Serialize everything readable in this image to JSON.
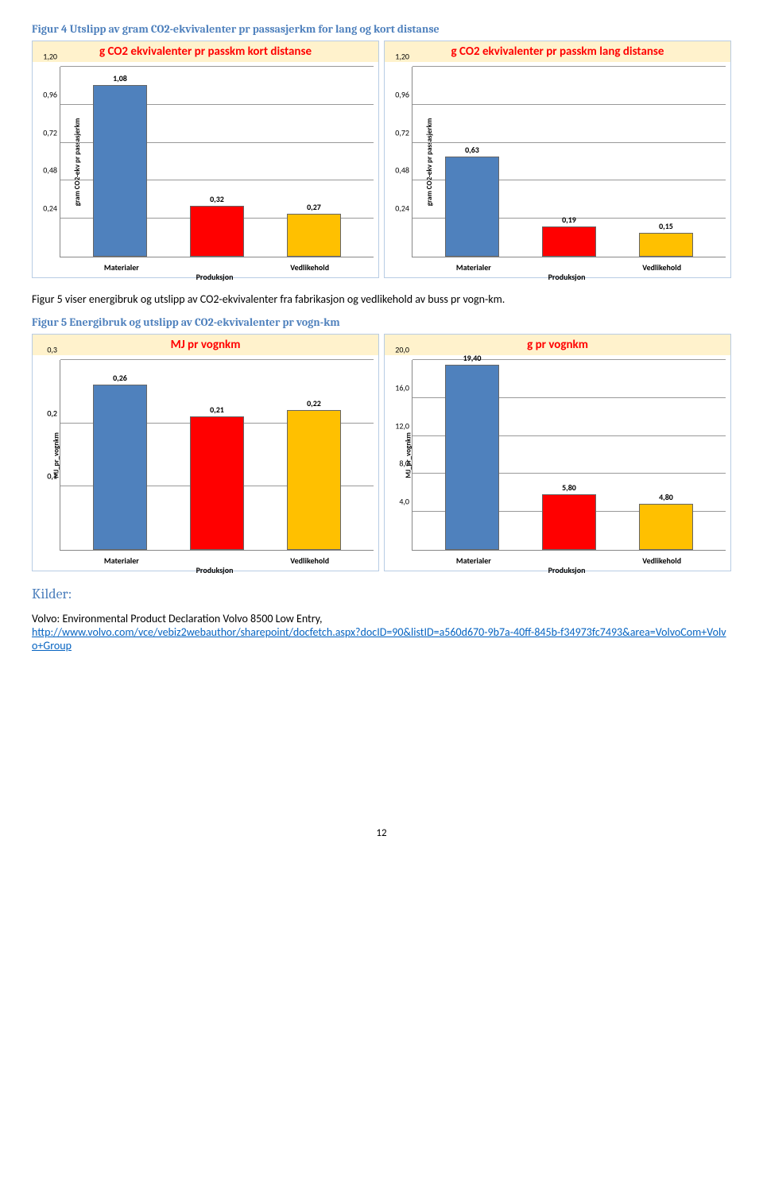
{
  "fig4_heading": "Figur 4 Utslipp av gram CO2-ekvivalenter pr passasjerkm for lang og kort distanse",
  "fig5_intro": "Figur 5 viser energibruk og utslipp av CO2-ekvivalenter fra fabrikasjon og vedlikehold av buss pr vogn-km.",
  "fig5_heading": "Figur 5 Energibruk og utslipp av CO2-ekvivalenter pr vogn-km",
  "kilder_title": "Kilder:",
  "source_text": "Volvo: Environmental Product Declaration Volvo 8500 Low Entry",
  "source_url": "http://www.volvo.com/vce/vebiz2webauthor/sharepoint/docfetch.aspx?docID=90&listID=a560d670-9b7a-40ff-845b-f34973fc7493&area=VolvoCom+Volvo+Group",
  "page_number": "12",
  "colors": {
    "bar_blue": "#4f81bd",
    "bar_red": "#ff0000",
    "bar_orange": "#ffc000",
    "title_band_bg": "#fff2cc",
    "title_band_text": "#ff0000",
    "frame_border": "#b8cce4",
    "grid": "#999999"
  },
  "row1": {
    "left": {
      "type": "bar",
      "title": "g CO2 ekvivalenter pr passkm kort distanse",
      "y_axis_label": "gram CO2-ekv pr passasjerkm",
      "ylim": [
        0,
        1.2
      ],
      "yticks": [
        0.24,
        0.48,
        0.72,
        0.96,
        1.2
      ],
      "ytick_labels": [
        "0,24",
        "0,48",
        "0,72",
        "0,96",
        "1,20"
      ],
      "categories": [
        "Materialer",
        "Produksjon",
        "Vedlikehold"
      ],
      "values": [
        1.08,
        0.32,
        0.27
      ],
      "value_labels": [
        "1,08",
        "0,32",
        "0,27"
      ],
      "bar_colors": [
        "#4f81bd",
        "#ff0000",
        "#ffc000"
      ]
    },
    "right": {
      "type": "bar",
      "title": "g CO2 ekvivalenter pr passkm lang distanse",
      "y_axis_label": "gram CO2-ekv pr passasjerkm",
      "ylim": [
        0,
        1.2
      ],
      "yticks": [
        0.24,
        0.48,
        0.72,
        0.96,
        1.2
      ],
      "ytick_labels": [
        "0,24",
        "0,48",
        "0,72",
        "0,96",
        "1,20"
      ],
      "categories": [
        "Materialer",
        "Produksjon",
        "Vedlikehold"
      ],
      "values": [
        0.63,
        0.19,
        0.15
      ],
      "value_labels": [
        "0,63",
        "0,19",
        "0,15"
      ],
      "bar_colors": [
        "#4f81bd",
        "#ff0000",
        "#ffc000"
      ]
    }
  },
  "row2": {
    "left": {
      "type": "bar",
      "title": "MJ pr vognkm",
      "y_axis_label": "MJ_pr_vognkm",
      "ylim": [
        0,
        0.3
      ],
      "yticks": [
        0.1,
        0.1,
        0.2,
        0.2,
        0.3
      ],
      "ytick_labels": [
        "0,1",
        "0,1",
        "0,2",
        "0,2",
        "0,3"
      ],
      "categories": [
        "Materialer",
        "Produksjon",
        "Vedlikehold"
      ],
      "values": [
        0.26,
        0.21,
        0.22
      ],
      "value_labels": [
        "0,26",
        "0,21",
        "0,22"
      ],
      "bar_colors": [
        "#4f81bd",
        "#ff0000",
        "#ffc000"
      ]
    },
    "right": {
      "type": "bar",
      "title": "g pr vognkm",
      "y_axis_label": "MJ_pr_vognkm",
      "ylim": [
        0,
        20.0
      ],
      "yticks": [
        4.0,
        8.0,
        12.0,
        16.0,
        20.0
      ],
      "ytick_labels": [
        "4,0",
        "8,0",
        "12,0",
        "16,0",
        "20,0"
      ],
      "categories": [
        "Materialer",
        "Produksjon",
        "Vedlikehold"
      ],
      "values": [
        19.4,
        5.8,
        4.8
      ],
      "value_labels": [
        "19,40",
        "5,80",
        "4,80"
      ],
      "bar_colors": [
        "#4f81bd",
        "#ff0000",
        "#ffc000"
      ]
    }
  }
}
